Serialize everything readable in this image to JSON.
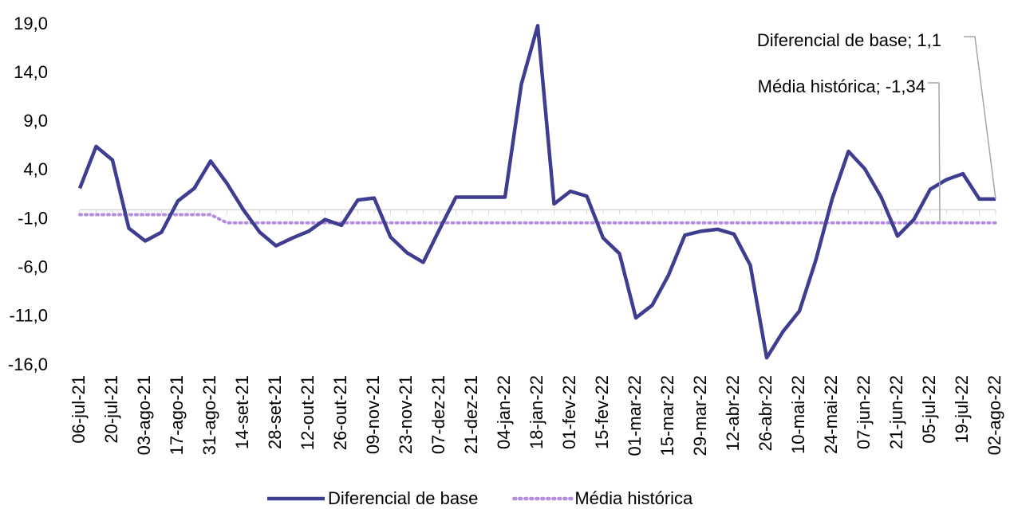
{
  "chart_data": {
    "type": "line",
    "categories": [
      "06-jul-21",
      null,
      "20-jul-21",
      null,
      "03-ago-21",
      null,
      "17-ago-21",
      null,
      "31-ago-21",
      null,
      "14-set-21",
      null,
      "28-set-21",
      null,
      "12-out-21",
      null,
      "26-out-21",
      null,
      "09-nov-21",
      null,
      "23-nov-21",
      null,
      "07-dez-21",
      null,
      "21-dez-21",
      null,
      "04-jan-22",
      null,
      "18-jan-22",
      null,
      "01-fev-22",
      null,
      "15-fev-22",
      null,
      "01-mar-22",
      null,
      "15-mar-22",
      null,
      "29-mar-22",
      null,
      "12-abr-22",
      null,
      "26-abr-22",
      null,
      "10-mai-22",
      null,
      "24-mai-22",
      null,
      "07-jun-22",
      null,
      "21-jun-22",
      null,
      "05-jul-22",
      null,
      "19-jul-22",
      null,
      "02-ago-22"
    ],
    "series": [
      {
        "name": "Diferencial de base",
        "color": "#3f3d8f",
        "style": "solid",
        "values": [
          2.2,
          6.5,
          5.1,
          -1.9,
          -3.2,
          -2.3,
          0.9,
          2.2,
          5.0,
          2.7,
          0.0,
          -2.3,
          -3.7,
          -2.9,
          -2.2,
          -1.0,
          -1.6,
          1.0,
          1.2,
          -2.8,
          -4.4,
          -5.4,
          -2.0,
          1.3,
          1.3,
          1.3,
          1.3,
          12.9,
          18.9,
          0.6,
          1.9,
          1.4,
          -2.9,
          -4.5,
          -11.1,
          -9.8,
          -6.7,
          -2.6,
          -2.2,
          -2.0,
          -2.5,
          -5.7,
          -15.2,
          -12.5,
          -10.4,
          -5.2,
          1.1,
          6.0,
          4.2,
          1.3,
          -2.7,
          -1.0,
          2.1,
          3.1,
          3.7,
          1.1,
          1.1
        ],
        "value_labels": [
          null,
          null,
          null,
          null,
          null,
          null,
          null,
          null,
          null,
          null,
          null,
          null,
          null,
          null,
          null,
          null,
          null,
          null,
          null,
          null,
          null,
          null,
          null,
          null,
          null,
          null,
          null,
          null,
          null,
          null,
          null,
          null,
          null,
          null,
          null,
          null,
          null,
          null,
          null,
          null,
          null,
          null,
          null,
          null,
          null,
          null,
          null,
          null,
          null,
          null,
          null,
          null,
          null,
          null,
          null,
          null,
          "Diferencial de base; 1,1"
        ]
      },
      {
        "name": "Média histórica",
        "color": "#b58ee0",
        "style": "dotted",
        "values": [
          -0.5,
          -0.5,
          -0.5,
          -0.5,
          -0.5,
          -0.5,
          -0.5,
          -0.5,
          -0.5,
          -1.34,
          -1.34,
          -1.34,
          -1.34,
          -1.34,
          -1.34,
          -1.34,
          -1.34,
          -1.34,
          -1.34,
          -1.34,
          -1.34,
          -1.34,
          -1.34,
          -1.34,
          -1.34,
          -1.34,
          -1.34,
          -1.34,
          -1.34,
          -1.34,
          -1.34,
          -1.34,
          -1.34,
          -1.34,
          -1.34,
          -1.34,
          -1.34,
          -1.34,
          -1.34,
          -1.34,
          -1.34,
          -1.34,
          -1.34,
          -1.34,
          -1.34,
          -1.34,
          -1.34,
          -1.34,
          -1.34,
          -1.34,
          -1.34,
          -1.34,
          -1.34,
          -1.34,
          -1.34,
          -1.34,
          -1.34
        ],
        "value_labels": [
          null,
          null,
          null,
          null,
          null,
          null,
          null,
          null,
          null,
          null,
          null,
          null,
          null,
          null,
          null,
          null,
          null,
          null,
          null,
          null,
          null,
          null,
          null,
          null,
          null,
          null,
          null,
          null,
          null,
          null,
          null,
          null,
          null,
          null,
          null,
          null,
          null,
          null,
          null,
          null,
          null,
          null,
          null,
          null,
          null,
          null,
          null,
          null,
          null,
          null,
          null,
          null,
          null,
          null,
          null,
          null,
          "Média histórica; -1,34"
        ]
      }
    ],
    "ylim": [
      -16,
      19
    ],
    "yticks": [
      {
        "value": 19,
        "label": "19,0"
      },
      {
        "value": 14,
        "label": "14,0"
      },
      {
        "value": 9,
        "label": "9,0"
      },
      {
        "value": 4,
        "label": "4,0"
      },
      {
        "value": -1,
        "label": "-1,0"
      },
      {
        "value": -6,
        "label": "-6,0"
      },
      {
        "value": -11,
        "label": "-11,0"
      },
      {
        "value": -16,
        "label": "-16,0"
      }
    ],
    "grid": false
  }
}
